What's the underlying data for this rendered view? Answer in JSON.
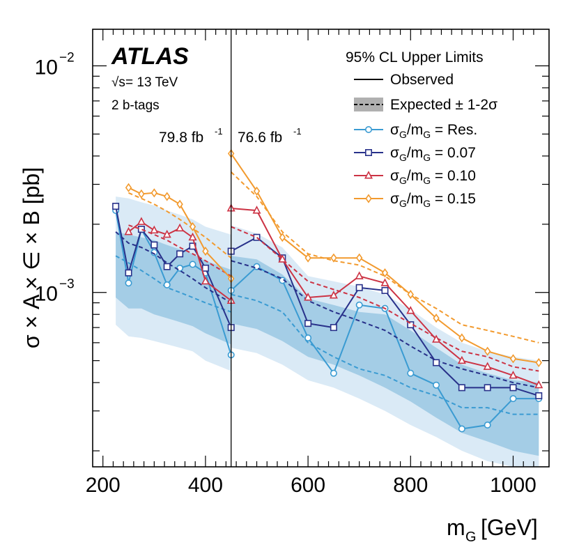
{
  "chart_data": {
    "type": "line",
    "title": "",
    "experiment": "ATLAS",
    "energy_label": "s = 13 TeV",
    "energy_value": "= 13 TeV",
    "sqrt_symbol": "√s",
    "selection_label": "2 b-tags",
    "xlabel": "m_G [GeV]",
    "xlabel_main": "m",
    "xlabel_sub": "G",
    "xlabel_unit": "[GeV]",
    "ylabel": "σ × A × ∈ × B [pb]",
    "ylabel_text": "σ × A × ∈ × B [pb]",
    "xlim": [
      180,
      1070
    ],
    "ylim": [
      0.00017,
      0.0145
    ],
    "yscale": "log",
    "x_ticks": [
      200,
      400,
      600,
      800,
      1000
    ],
    "x_tick_labels": [
      "200",
      "400",
      "600",
      "800",
      "1000"
    ],
    "y_major_ticks": [
      {
        "value": 0.001,
        "base": "10",
        "exp": "−3"
      },
      {
        "value": 0.01,
        "base": "10",
        "exp": "−2"
      }
    ],
    "luminosity_boundary": 450,
    "lumi_left": {
      "value": "79.8 fb",
      "exp": "-1"
    },
    "lumi_right": {
      "value": "76.6 fb",
      "exp": "-1"
    },
    "legend": {
      "header": "95% CL Upper Limits",
      "observed_label": "Observed",
      "expected_label": "Expected ± 1-2σ"
    },
    "band_x": [
      225,
      250,
      275,
      300,
      325,
      350,
      375,
      400,
      450,
      450,
      500,
      550,
      600,
      650,
      700,
      750,
      800,
      850,
      900,
      950,
      1000,
      1050
    ],
    "band_2sigma_upper": [
      0.00265,
      0.0026,
      0.0025,
      0.00242,
      0.0023,
      0.0022,
      0.0021,
      0.00195,
      0.0018,
      0.00198,
      0.00182,
      0.00158,
      0.00118,
      0.00112,
      0.00106,
      0.00098,
      0.00084,
      0.0007,
      0.0006,
      0.00055,
      0.00052,
      0.0005
    ],
    "band_1sigma_upper": [
      0.00185,
      0.0018,
      0.00175,
      0.0017,
      0.00162,
      0.00155,
      0.00148,
      0.00138,
      0.00126,
      0.00145,
      0.0014,
      0.0012,
      0.00094,
      0.00088,
      0.00082,
      0.0008,
      0.00068,
      0.00057,
      0.00048,
      0.00044,
      0.00041,
      0.0004
    ],
    "band_1sigma_lower": [
      0.00095,
      0.00085,
      0.00085,
      0.0008,
      0.00077,
      0.00074,
      0.00071,
      0.00066,
      0.00059,
      0.00073,
      0.00069,
      0.00061,
      0.00052,
      0.00048,
      0.00043,
      0.00038,
      0.00033,
      0.00028,
      0.00024,
      0.00022,
      0.0002,
      0.00019
    ],
    "band_2sigma_lower": [
      0.00072,
      0.00064,
      0.00063,
      0.00061,
      0.00059,
      0.00057,
      0.00055,
      0.0005,
      0.00045,
      0.00057,
      0.00054,
      0.00048,
      0.00041,
      0.00038,
      0.00034,
      0.0003,
      0.00026,
      0.00023,
      0.0002,
      0.00018,
      0.00017,
      0.00017
    ],
    "series": [
      {
        "name": "σG/mG = Res.",
        "legend_main": "σ",
        "legend_sub1": "G",
        "legend_mid": "/m",
        "legend_sub2": "G",
        "legend_value": " = Res.",
        "color": "#3a9bd2",
        "marker": "circle",
        "observed": {
          "x": [
            225,
            250,
            275,
            300,
            325,
            350,
            375,
            400,
            450,
            450,
            500,
            550,
            600,
            650,
            700,
            750,
            800,
            850,
            900,
            950,
            1000,
            1050
          ],
          "y": [
            0.0023,
            0.0011,
            0.0019,
            0.0015,
            0.00108,
            0.00128,
            0.00133,
            0.00122,
            0.00053,
            0.00102,
            0.0013,
            0.00113,
            0.00063,
            0.00044,
            0.00088,
            0.00085,
            0.00044,
            0.00039,
            0.00025,
            0.00026,
            0.00034,
            0.00034
          ]
        },
        "expected": {
          "x": [
            225,
            250,
            275,
            300,
            325,
            350,
            375,
            400,
            450,
            450,
            500,
            550,
            600,
            650,
            700,
            750,
            800,
            850,
            900,
            950,
            1000,
            1050
          ],
          "y": [
            0.00145,
            0.00135,
            0.00125,
            0.00115,
            0.00105,
            0.001,
            0.00095,
            0.0009,
            0.00082,
            0.00098,
            0.00092,
            0.00082,
            0.0006,
            0.00052,
            0.00046,
            0.00043,
            0.00038,
            0.00035,
            0.00031,
            0.00031,
            0.00029,
            0.00029
          ]
        }
      },
      {
        "name": "σG/mG = 0.07",
        "legend_main": "σ",
        "legend_sub1": "G",
        "legend_mid": "/m",
        "legend_sub2": "G",
        "legend_value": " = 0.07",
        "color": "#28318a",
        "marker": "square",
        "observed": {
          "x": [
            225,
            250,
            275,
            300,
            325,
            350,
            375,
            400,
            450,
            450,
            500,
            550,
            600,
            650,
            700,
            750,
            800,
            850,
            900,
            950,
            1000,
            1050
          ],
          "y": [
            0.0024,
            0.00122,
            0.0019,
            0.00162,
            0.0013,
            0.00148,
            0.0016,
            0.00128,
            0.0007,
            0.00152,
            0.00175,
            0.00142,
            0.00073,
            0.0007,
            0.00105,
            0.00102,
            0.00072,
            0.00049,
            0.00038,
            0.00038,
            0.00038,
            0.00035
          ]
        },
        "expected": {
          "x": [
            225,
            250,
            275,
            300,
            325,
            350,
            375,
            400,
            450,
            450,
            500,
            550,
            600,
            650,
            700,
            750,
            800,
            850,
            900,
            950,
            1000,
            1050
          ],
          "y": [
            0.00185,
            0.00165,
            0.00158,
            0.00148,
            0.00135,
            0.00125,
            0.00115,
            0.00105,
            0.0009,
            0.00138,
            0.00128,
            0.00115,
            0.00092,
            0.00082,
            0.00075,
            0.00068,
            0.00058,
            0.0005,
            0.00046,
            0.00043,
            0.0004,
            0.00038
          ]
        }
      },
      {
        "name": "σG/mG = 0.10",
        "legend_main": "σ",
        "legend_sub1": "G",
        "legend_mid": "/m",
        "legend_sub2": "G",
        "legend_value": " = 0.10",
        "color": "#cc3344",
        "marker": "triangle",
        "observed": {
          "x": [
            250,
            275,
            300,
            325,
            350,
            375,
            400,
            450,
            450,
            500,
            550,
            600,
            650,
            700,
            750,
            800,
            850,
            900,
            950,
            1000,
            1050
          ],
          "y": [
            0.00185,
            0.00205,
            0.00188,
            0.0018,
            0.00192,
            0.00175,
            0.00112,
            0.00092,
            0.00235,
            0.0023,
            0.0014,
            0.00095,
            0.00097,
            0.00118,
            0.0011,
            0.00083,
            0.00062,
            0.0005,
            0.00047,
            0.00043,
            0.00039
          ]
        },
        "expected": {
          "x": [
            250,
            275,
            300,
            325,
            350,
            375,
            400,
            450,
            450,
            500,
            550,
            600,
            650,
            700,
            750,
            800,
            850,
            900,
            950,
            1000,
            1050
          ],
          "y": [
            0.00198,
            0.0019,
            0.0018,
            0.0017,
            0.00158,
            0.00148,
            0.00138,
            0.00118,
            0.00195,
            0.00175,
            0.0014,
            0.00112,
            0.00103,
            0.00095,
            0.00085,
            0.00073,
            0.00063,
            0.00055,
            0.00052,
            0.00047,
            0.00045
          ]
        }
      },
      {
        "name": "σG/mG = 0.15",
        "legend_main": "σ",
        "legend_sub1": "G",
        "legend_mid": "/m",
        "legend_sub2": "G",
        "legend_value": " = 0.15",
        "color": "#f29a2e",
        "marker": "diamond",
        "observed": {
          "x": [
            250,
            275,
            300,
            325,
            350,
            375,
            400,
            450,
            450,
            500,
            550,
            600,
            650,
            700,
            750,
            800,
            850,
            900,
            950,
            1000,
            1050
          ],
          "y": [
            0.0029,
            0.00272,
            0.00275,
            0.00265,
            0.00245,
            0.00195,
            0.00152,
            0.00115,
            0.0041,
            0.0028,
            0.00175,
            0.00142,
            0.00142,
            0.00142,
            0.00122,
            0.00098,
            0.00077,
            0.00063,
            0.00055,
            0.00051,
            0.00049
          ]
        },
        "expected": {
          "x": [
            250,
            275,
            300,
            325,
            350,
            375,
            400,
            450,
            450,
            500,
            550,
            600,
            650,
            700,
            750,
            800,
            850,
            900,
            950,
            1000,
            1050
          ],
          "y": [
            0.00275,
            0.0026,
            0.00245,
            0.00228,
            0.0021,
            0.00192,
            0.00175,
            0.00142,
            0.0034,
            0.00265,
            0.00185,
            0.00148,
            0.00138,
            0.00132,
            0.00118,
            0.00098,
            0.00085,
            0.00072,
            0.00068,
            0.00064,
            0.0006
          ]
        }
      }
    ],
    "colors": {
      "band_2sigma": "#daeaf6",
      "band_1sigma": "#a4cde6",
      "legend_band": "#b0b0b0",
      "axis": "#000000"
    }
  }
}
